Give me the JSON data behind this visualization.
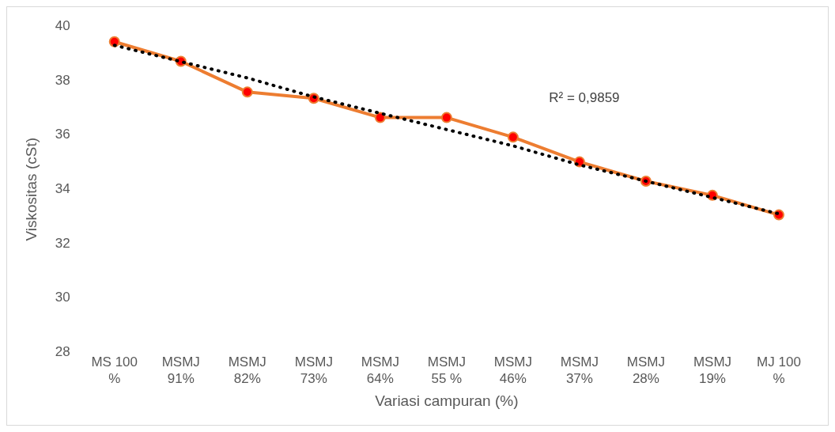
{
  "chart_data": {
    "type": "line",
    "xlabel": "Variasi campuran (%)",
    "ylabel": "Viskositas (cSt)",
    "categories": [
      "MS 100 %",
      "MSMJ 91%",
      "MSMJ 82%",
      "MSMJ 73%",
      "MSMJ 64%",
      "MSMJ 55 %",
      "MSMJ 46%",
      "MSMJ 37%",
      "MSMJ 28%",
      "MSMJ 19%",
      "MJ 100 %"
    ],
    "series": [
      {
        "type": "line",
        "color": "#ed7d31",
        "marker": "circle",
        "line_style": "solid",
        "values": [
          39.43,
          38.71,
          37.58,
          37.35,
          36.64,
          36.64,
          35.92,
          35.01,
          34.3,
          33.78,
          33.06
        ]
      },
      {
        "type": "line",
        "color": "#000000",
        "marker": "none",
        "line_style": "dotted",
        "x": [
          "MS 100 %",
          "MSMJ 91%",
          "MSMJ 82%",
          "MSMJ 73%",
          "MSMJ 64%",
          "MSMJ 55 %",
          "MSMJ 46%",
          "MSMJ 37%",
          "MSMJ 28%",
          "MSMJ 19%",
          "MJ 100 %"
        ],
        "values": [
          39.3,
          38.7,
          38.1,
          37.4,
          36.8,
          36.2,
          35.6,
          34.9,
          34.3,
          33.7,
          33.1
        ]
      }
    ],
    "ylim": [
      28,
      40
    ],
    "yticks": [
      28,
      30,
      32,
      34,
      36,
      38,
      40
    ],
    "grid": false,
    "legend": false,
    "annotations": [
      "R² = 0,9859"
    ]
  }
}
